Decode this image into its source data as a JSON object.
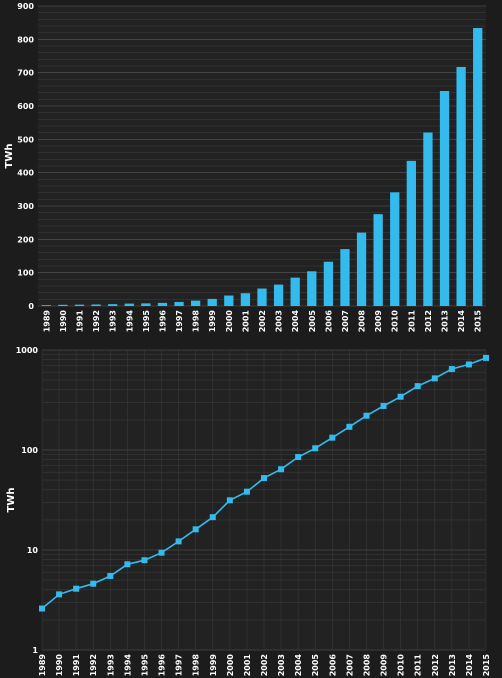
{
  "colors": {
    "background": "#1c1c1c",
    "plot_background": "#222222",
    "grid_minor": "#3a3a3a",
    "grid_major": "#5a5a5a",
    "bar": "#33bbee",
    "line": "#33bbee",
    "text": "#ffffff"
  },
  "chart_data": [
    {
      "type": "bar",
      "ylabel": "TWh",
      "ylim": [
        0,
        900
      ],
      "yticks": [
        0,
        100,
        200,
        300,
        400,
        500,
        600,
        700,
        800,
        900
      ],
      "grid": true,
      "categories": [
        "1989",
        "1990",
        "1991",
        "1992",
        "1993",
        "1994",
        "1995",
        "1996",
        "1997",
        "1998",
        "1999",
        "2000",
        "2001",
        "2002",
        "2003",
        "2004",
        "2005",
        "2006",
        "2007",
        "2008",
        "2009",
        "2010",
        "2011",
        "2012",
        "2013",
        "2014",
        "2015"
      ],
      "values": [
        2.6,
        3.6,
        4.1,
        4.6,
        5.5,
        7.2,
        7.9,
        9.4,
        12.2,
        16.1,
        21.3,
        31.4,
        38.3,
        52.4,
        64.2,
        85.1,
        104.1,
        132.8,
        170.7,
        220.3,
        275.6,
        341.2,
        435.5,
        520.6,
        645.0,
        717.0,
        834.0
      ]
    },
    {
      "type": "line",
      "scale": "log",
      "ylabel": "TWh",
      "ylim": [
        1,
        1000
      ],
      "yticks": [
        1,
        10,
        100,
        1000
      ],
      "grid": true,
      "marker": "square",
      "categories": [
        "1989",
        "1990",
        "1991",
        "1992",
        "1993",
        "1994",
        "1995",
        "1996",
        "1997",
        "1998",
        "1999",
        "2000",
        "2001",
        "2002",
        "2003",
        "2004",
        "2005",
        "2006",
        "2007",
        "2008",
        "2009",
        "2010",
        "2011",
        "2012",
        "2013",
        "2014",
        "2015"
      ],
      "values": [
        2.6,
        3.6,
        4.1,
        4.6,
        5.5,
        7.2,
        7.9,
        9.4,
        12.2,
        16.1,
        21.3,
        31.4,
        38.3,
        52.4,
        64.2,
        85.1,
        104.1,
        132.8,
        170.7,
        220.3,
        275.6,
        341.2,
        435.5,
        520.6,
        645.0,
        717.0,
        834.0
      ]
    }
  ]
}
